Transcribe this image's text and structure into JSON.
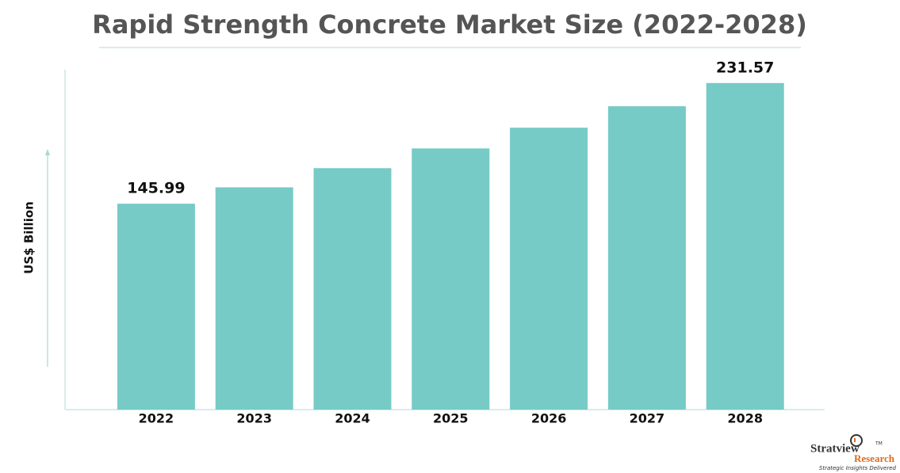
{
  "chart_data": {
    "type": "bar",
    "title": "Rapid Strength Concrete Market Size (2022-2028)",
    "y_label": "US$ Billion",
    "categories": [
      "2022",
      "2023",
      "2024",
      "2025",
      "2026",
      "2027",
      "2028"
    ],
    "values": [
      145.99,
      157.6,
      171.2,
      185.2,
      199.9,
      215.1,
      231.57
    ],
    "value_labels": [
      "145.99",
      null,
      null,
      null,
      null,
      null,
      "231.57"
    ],
    "color": "#76cbc6",
    "ylim": [
      0,
      241
    ]
  },
  "logo": {
    "name": "Stratview",
    "trademark": "TM",
    "subname": "Research",
    "tagline": "Strategic Insights Delivered"
  }
}
